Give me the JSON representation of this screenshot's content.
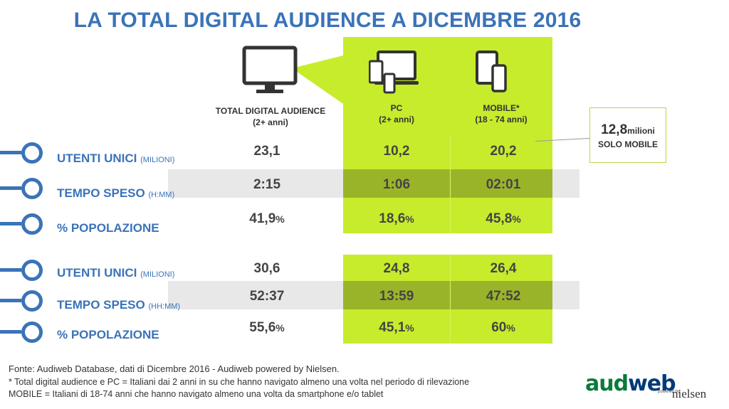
{
  "title": "LA TOTAL DIGITAL AUDIENCE A DICEMBRE 2016",
  "columns": {
    "total": {
      "label": "TOTAL DIGITAL AUDIENCE",
      "sub": "(2+ anni)"
    },
    "pc": {
      "label": "PC",
      "sub": "(2+ anni)"
    },
    "mobile": {
      "label": "MOBILE*",
      "sub": "(18 - 74 anni)"
    }
  },
  "section1": {
    "rows": [
      {
        "label": "UTENTI UNICI",
        "unit": "(MILIONI)",
        "total": "23,1",
        "pc": "10,2",
        "mobile": "20,2"
      },
      {
        "label": "TEMPO SPESO",
        "unit": "(H:MM)",
        "total": "2:15",
        "pc": "1:06",
        "mobile": "02:01"
      },
      {
        "label": "% POPOLAZIONE",
        "unit": "",
        "total": "41,9",
        "pc": "18,6",
        "mobile": "45,8"
      }
    ]
  },
  "section2": {
    "rows": [
      {
        "label": "UTENTI UNICI",
        "unit": "(MILIONI)",
        "total": "30,6",
        "pc": "24,8",
        "mobile": "26,4"
      },
      {
        "label": "TEMPO SPESO",
        "unit": "(HH:MM)",
        "total": "52:37",
        "pc": "13:59",
        "mobile": "47:52"
      },
      {
        "label": "% POPOLAZIONE",
        "unit": "",
        "total": "55,6",
        "pc": "45,1",
        "mobile": "60"
      }
    ]
  },
  "pct_symbol": "%",
  "callout": {
    "value": "12,8",
    "unit": "milioni",
    "label": "SOLO MOBILE"
  },
  "footnotes": {
    "source": "Fonte: Audiweb Database, dati di Dicembre 2016 - Audiweb powered by Nielsen.",
    "note1": "* Total digital audience e PC = Italiani dai 2 anni in su che hanno navigato almeno una volta nel periodo di rilevazione",
    "note2": "MOBILE = Italiani di 18-74 anni che hanno navigato almeno una volta da smartphone e/o tablet"
  },
  "logo": {
    "part1": "aud",
    "part2": "web",
    "powered": "powered by",
    "brand": "nielsen"
  },
  "colors": {
    "blue": "#3a73b8",
    "green": "#c6ec2c",
    "dark_green": "#9ab42a",
    "gray_band": "#e8e8e8"
  },
  "icons": [
    "monitor-icon",
    "devices-icon",
    "mobile-devices-icon"
  ]
}
